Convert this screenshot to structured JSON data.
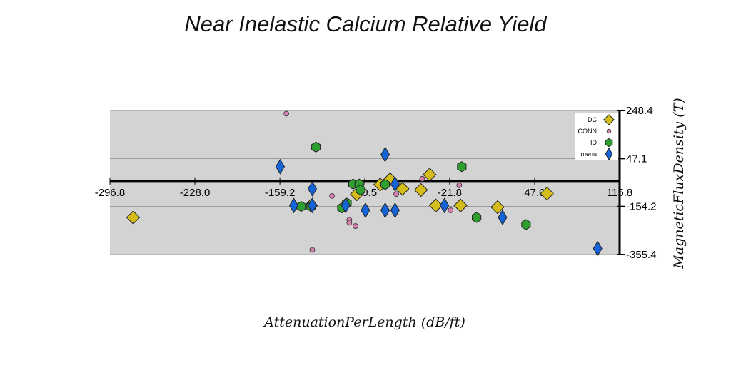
{
  "chart_data": {
    "type": "scatter",
    "title": "Near Inelastic Calcium Relative Yield",
    "xlabel": "AttenuationPerLength (dB/ft)",
    "ylabel": "MagneticFluxDensity (T)",
    "xlim": [
      -296.8,
      115.8
    ],
    "ylim": [
      -355.4,
      248.4
    ],
    "x_ticks": [
      "-296.8",
      "-228.0",
      "-159.2",
      "-90.5",
      "-21.8",
      "47.0",
      "115.8"
    ],
    "y_ticks": [
      "248.4",
      "47.1",
      "-154.2",
      "-355.4"
    ],
    "x_axis_at_y": -47,
    "grid": true,
    "legend_position": "top-right",
    "background": "#d3d3d3",
    "series": [
      {
        "name": "DC",
        "marker": "diamond",
        "color": "#d4bd1a",
        "points": [
          [
            -278,
            -200
          ],
          [
            -134,
            -150
          ],
          [
            -97,
            -103
          ],
          [
            -78,
            -62
          ],
          [
            -70,
            -40
          ],
          [
            -60,
            -80
          ],
          [
            -45,
            -85
          ],
          [
            -38,
            -20
          ],
          [
            -33,
            -150
          ],
          [
            -13,
            -150
          ],
          [
            17,
            -157
          ],
          [
            57,
            -100
          ]
        ]
      },
      {
        "name": "CONN",
        "marker": "circle",
        "color": "#d77fae",
        "points": [
          [
            -154,
            235
          ],
          [
            -133,
            -336
          ],
          [
            -117,
            -110
          ],
          [
            -103,
            -210
          ],
          [
            -103,
            -222
          ],
          [
            -98,
            -236
          ],
          [
            -65,
            -102
          ],
          [
            -44,
            -38
          ],
          [
            -14,
            -65
          ],
          [
            -21,
            -170
          ],
          [
            -25,
            -150
          ]
        ]
      },
      {
        "name": "ID",
        "marker": "hexagon",
        "color": "#2e9e2e",
        "points": [
          [
            -142,
            -154
          ],
          [
            -134,
            -154
          ],
          [
            -130,
            95
          ],
          [
            -109,
            -160
          ],
          [
            -105,
            -140
          ],
          [
            -100,
            -60
          ],
          [
            -95,
            -60
          ],
          [
            -94,
            -85
          ],
          [
            -74,
            -62
          ],
          [
            -12,
            13
          ],
          [
            0,
            -200
          ],
          [
            40,
            -230
          ]
        ]
      },
      {
        "name": "menu",
        "marker": "diamond",
        "color": "#1464d8",
        "points": [
          [
            -159,
            13
          ],
          [
            -148,
            -150
          ],
          [
            -133,
            -80
          ],
          [
            -133,
            -150
          ],
          [
            -106,
            -150
          ],
          [
            -90,
            -170
          ],
          [
            -74,
            -170
          ],
          [
            -74,
            64
          ],
          [
            -66,
            -60
          ],
          [
            -66,
            -170
          ],
          [
            -26,
            -150
          ],
          [
            21,
            -200
          ],
          [
            98,
            -330
          ]
        ]
      }
    ]
  }
}
